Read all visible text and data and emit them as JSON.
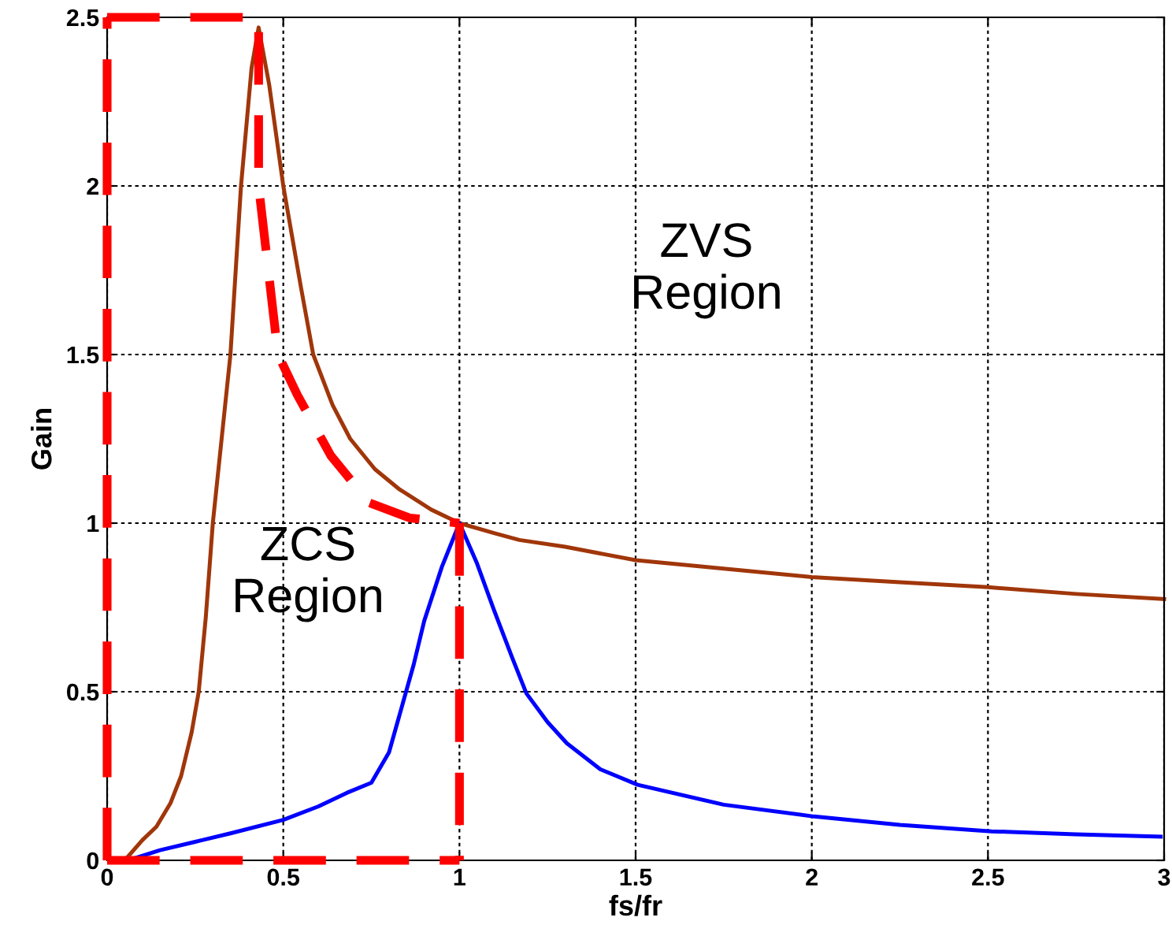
{
  "chart_data": {
    "type": "line",
    "xlabel": "fs/fr",
    "ylabel": "Gain",
    "xlim": [
      0,
      3
    ],
    "ylim": [
      0,
      2.5
    ],
    "xticks": [
      0,
      0.5,
      1,
      1.5,
      2,
      2.5,
      3
    ],
    "yticks": [
      0,
      0.5,
      1,
      1.5,
      2,
      2.5
    ],
    "grid": true,
    "line_style": "solid",
    "marker": "none",
    "series": [
      {
        "color": "#a0360a",
        "x": [
          0.05,
          0.1,
          0.14,
          0.18,
          0.21,
          0.24,
          0.26,
          0.28,
          0.3,
          0.35,
          0.38,
          0.41,
          0.43,
          0.46,
          0.5,
          0.55,
          0.585,
          0.64,
          0.69,
          0.76,
          0.83,
          0.92,
          1.0,
          1.1,
          1.17,
          1.3,
          1.5,
          1.75,
          2.0,
          2.25,
          2.5,
          2.75,
          3.0
        ],
        "values": [
          0.0,
          0.06,
          0.1,
          0.17,
          0.25,
          0.38,
          0.5,
          0.72,
          1.0,
          1.5,
          2.0,
          2.35,
          2.47,
          2.3,
          2.0,
          1.7,
          1.5,
          1.35,
          1.25,
          1.16,
          1.1,
          1.04,
          1.0,
          0.97,
          0.95,
          0.93,
          0.89,
          0.865,
          0.84,
          0.825,
          0.81,
          0.79,
          0.775
        ]
      },
      {
        "color": "#0000ff",
        "x": [
          0.06,
          0.15,
          0.25,
          0.35,
          0.5,
          0.6,
          0.68,
          0.75,
          0.8,
          0.835,
          0.87,
          0.9,
          0.95,
          1.0,
          1.05,
          1.097,
          1.15,
          1.19,
          1.25,
          1.305,
          1.4,
          1.506,
          1.75,
          2.006,
          2.25,
          2.51,
          2.75,
          2.99
        ],
        "values": [
          0.0,
          0.03,
          0.055,
          0.08,
          0.12,
          0.16,
          0.2,
          0.23,
          0.32,
          0.45,
          0.58,
          0.71,
          0.87,
          1.0,
          0.88,
          0.745,
          0.6,
          0.495,
          0.41,
          0.347,
          0.27,
          0.224,
          0.165,
          0.13,
          0.105,
          0.086,
          0.077,
          0.07
        ]
      },
      {
        "color": "#ff0000",
        "line_style": "dashed",
        "x": [
          0.0,
          0.43,
          0.43,
          0.485,
          0.54,
          0.635,
          0.745,
          0.86,
          1.0
        ],
        "values": [
          2.5,
          2.5,
          2.0,
          1.5,
          1.38,
          1.2,
          1.06,
          1.015,
          1.0
        ]
      },
      {
        "color": "#ff0000",
        "line_style": "dashed",
        "x": [
          1.0,
          1.0
        ],
        "values": [
          1.0,
          0.0
        ]
      },
      {
        "color": "#ff0000",
        "line_style": "dashed",
        "x": [
          0.0,
          0.0
        ],
        "values": [
          0.0,
          2.5
        ]
      },
      {
        "color": "#ff0000",
        "line_style": "dashed",
        "x": [
          0.0,
          1.0
        ],
        "values": [
          0.0,
          0.0
        ]
      }
    ],
    "annotations": [
      "ZVS\nRegion",
      "ZCS\nRegion"
    ]
  }
}
